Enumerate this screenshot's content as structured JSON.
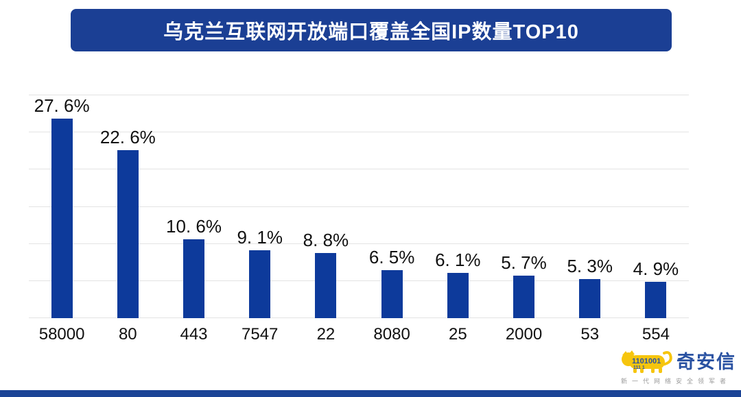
{
  "page": {
    "background": "#ffffff"
  },
  "header": {
    "title": "乌克兰互联网开放端口覆盖全国IP数量TOP10"
  },
  "chart_data": {
    "type": "bar",
    "title": "乌克兰互联网开放端口覆盖全国IP数量TOP10",
    "categories": [
      "58000",
      "80",
      "443",
      "7547",
      "22",
      "8080",
      "25",
      "2000",
      "53",
      "554"
    ],
    "values": [
      27.6,
      22.6,
      10.6,
      9.1,
      8.8,
      6.5,
      6.1,
      5.7,
      5.3,
      4.9
    ],
    "value_labels": [
      "27. 6%",
      "22. 6%",
      "10. 6%",
      "9. 1%",
      "8. 8%",
      "6. 5%",
      "6. 1%",
      "5. 7%",
      "5. 3%",
      "4. 9%"
    ],
    "xlabel": "",
    "ylabel": "",
    "ylim": [
      0,
      30
    ],
    "grid_step": 5,
    "grid": true,
    "legend": false,
    "bar_color": "#0d3a9b"
  },
  "colors": {
    "page_bg": "#ffffff",
    "bar": "#0d3a9b",
    "banner": "#1b3f94",
    "bottom_strip": "#1b4496",
    "gridline": "#e3e3e3",
    "text": "#111111",
    "logo_yellow": "#f6c50e",
    "logo_blue": "#2a52a2",
    "logo_gray": "#9a9a9a"
  },
  "logo": {
    "brand": "奇安信",
    "tagline": "新一代网络安全领军者",
    "tiger_binary_line1": "1101001",
    "tiger_binary_line2": "111 1"
  }
}
